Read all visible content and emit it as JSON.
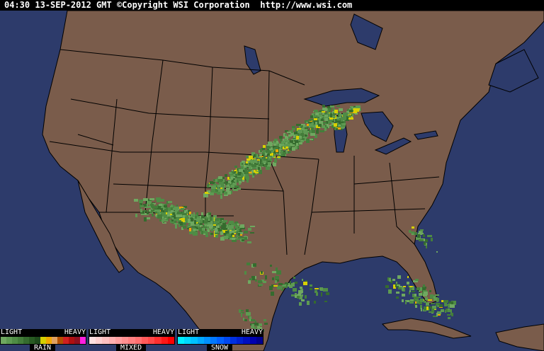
{
  "header": {
    "text": "04:30 13-SEP-2012 GMT ©Copyright WSI Corporation  http://www.wsi.com"
  },
  "colors": {
    "ocean": "#2d3b6b",
    "land": "#7a5c4b",
    "borders": "#000000"
  },
  "legend": [
    {
      "name": "RAIN",
      "light": "LIGHT",
      "heavy": "HEAVY",
      "colors": [
        "#6fa860",
        "#5e9a52",
        "#4f8c45",
        "#437d3a",
        "#356b2e",
        "#285a22",
        "#1e4a1a",
        "#d6d000",
        "#f0a800",
        "#e0a060",
        "#b45000",
        "#d02020",
        "#b01010",
        "#901020",
        "#ff20e0"
      ]
    },
    {
      "name": "MIXED",
      "light": "LIGHT",
      "heavy": "HEAVY",
      "colors": [
        "#ffe0e0",
        "#ffd0d0",
        "#ffc0c0",
        "#ffb0b0",
        "#ffa0a0",
        "#ff9090",
        "#ff8080",
        "#ff7070",
        "#ff5a5a",
        "#ff4848",
        "#ff3030",
        "#ff1818",
        "#ff0000"
      ]
    },
    {
      "name": "SNOW",
      "light": "LIGHT",
      "heavy": "HEAVY",
      "colors": [
        "#00f0ff",
        "#00d8ff",
        "#00c0ff",
        "#00a8ff",
        "#0090ff",
        "#0078ff",
        "#0060ff",
        "#0048f0",
        "#0030e0",
        "#0020d0",
        "#0010c0",
        "#0000b0",
        "#000090"
      ]
    }
  ]
}
